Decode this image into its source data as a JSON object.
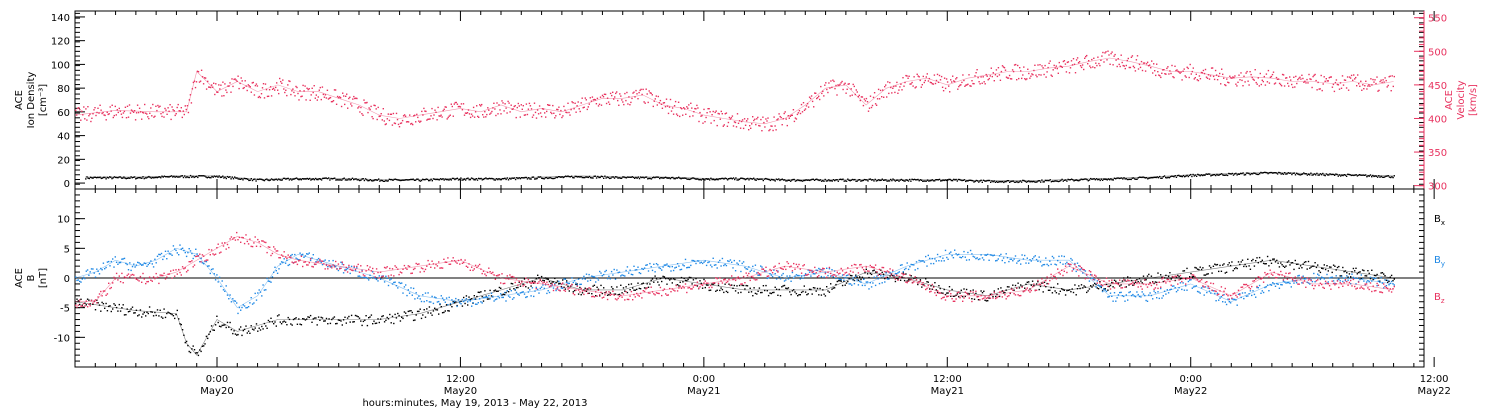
{
  "colors": {
    "density": "#000000",
    "velocity": "#e8325f",
    "bx": "#000000",
    "by": "#1e88e5",
    "bz": "#e8325f",
    "axis": "#000000"
  },
  "chart_data": [
    {
      "type": "scatter",
      "title": "",
      "ylabel_lines": [
        "ACE",
        "Ion Density",
        "[cm⁻³]"
      ],
      "y2label_lines": [
        "ACE",
        "Velocity",
        "[km/s]"
      ],
      "xlim_hours": [
        -7,
        59.5
      ],
      "ylim": [
        -5,
        145
      ],
      "y2lim": [
        295,
        560
      ],
      "yticks": [
        0,
        20,
        40,
        60,
        80,
        100,
        120,
        140
      ],
      "y2ticks": [
        300,
        350,
        400,
        450,
        500,
        550
      ],
      "series": [
        {
          "key": "density",
          "axis": "left",
          "x": [
            -6.5,
            -4,
            -2,
            0,
            2,
            4,
            6,
            8,
            10,
            12,
            14,
            16,
            18,
            20,
            22,
            24,
            26,
            28,
            30,
            32,
            34,
            36,
            38,
            40,
            42,
            44,
            46,
            48,
            50,
            52,
            54,
            56,
            58
          ],
          "values": [
            5,
            5,
            6,
            6,
            3,
            4,
            4,
            3,
            3,
            4,
            4,
            5,
            6,
            5,
            5,
            4,
            4,
            3,
            3,
            3,
            3,
            3,
            2,
            2,
            3,
            4,
            5,
            7,
            8,
            9,
            8,
            7,
            6
          ]
        },
        {
          "key": "velocity",
          "axis": "right",
          "x": [
            -7,
            -5,
            -3,
            -1.5,
            -1,
            0,
            1,
            2,
            3,
            4,
            5,
            6,
            7,
            8,
            9,
            10,
            11,
            12,
            13,
            14,
            15,
            16,
            17,
            18,
            19,
            20,
            21,
            22,
            23,
            24,
            25,
            26,
            27,
            28,
            29,
            30,
            31,
            32,
            33,
            34,
            35,
            36,
            37,
            38,
            39,
            40,
            41,
            42,
            43,
            44,
            45,
            46,
            47,
            48,
            49,
            50,
            51,
            52,
            53,
            54,
            55,
            56,
            57,
            58
          ],
          "values": [
            405,
            412,
            410,
            410,
            470,
            440,
            455,
            440,
            450,
            440,
            440,
            430,
            420,
            405,
            400,
            405,
            410,
            415,
            410,
            420,
            410,
            415,
            410,
            420,
            430,
            430,
            435,
            420,
            415,
            405,
            400,
            395,
            392,
            400,
            420,
            445,
            450,
            420,
            445,
            455,
            460,
            450,
            460,
            465,
            470,
            470,
            475,
            478,
            485,
            490,
            485,
            478,
            470,
            470,
            465,
            460,
            462,
            460,
            455,
            455,
            452,
            455,
            450,
            455
          ]
        }
      ]
    },
    {
      "type": "scatter",
      "title": "",
      "ylabel_lines": [
        "ACE",
        "B",
        "[nT]"
      ],
      "xlim_hours": [
        -7,
        59.5
      ],
      "ylim": [
        -15,
        15
      ],
      "yticks": [
        -10,
        -5,
        0,
        5,
        10
      ],
      "zero_line": true,
      "legend": [
        {
          "key": "bx",
          "label": "B",
          "sub": "x"
        },
        {
          "key": "by",
          "label": "B",
          "sub": "y"
        },
        {
          "key": "bz",
          "label": "B",
          "sub": "z"
        }
      ],
      "legend_position": "right",
      "series": [
        {
          "key": "bx",
          "x": [
            -7,
            -5,
            -4,
            -2,
            -1.5,
            -1,
            0,
            1,
            2,
            3,
            4,
            6,
            8,
            10,
            12,
            14,
            16,
            18,
            20,
            22,
            24,
            26,
            28,
            30,
            32,
            34,
            36,
            38,
            40,
            42,
            44,
            46,
            48,
            50,
            52,
            54,
            56,
            58
          ],
          "values": [
            -4,
            -5,
            -5.5,
            -6,
            -11,
            -13,
            -7,
            -9,
            -8,
            -7,
            -7,
            -7,
            -7,
            -6,
            -4,
            -2,
            0,
            -2,
            -2,
            0,
            -1,
            -2,
            -2,
            -2,
            1,
            0,
            -2,
            -3,
            -1,
            -2,
            -1,
            0,
            1,
            2,
            3,
            2,
            1,
            0
          ]
        },
        {
          "key": "by",
          "x": [
            -7,
            -6,
            -5,
            -4,
            -3,
            -2,
            -1,
            0,
            1,
            2,
            3,
            4,
            6,
            8,
            10,
            12,
            14,
            16,
            18,
            20,
            22,
            24,
            26,
            28,
            30,
            32,
            34,
            36,
            38,
            40,
            42,
            44,
            46,
            48,
            50,
            52,
            54,
            56,
            58
          ],
          "values": [
            0,
            1,
            3,
            2,
            3,
            5,
            4,
            0,
            -5,
            -3,
            2,
            4,
            2,
            0,
            -3,
            -4,
            -3,
            -2,
            0,
            1,
            2,
            3,
            2,
            0,
            1,
            -1,
            2,
            4,
            4,
            3,
            3,
            -3,
            -3,
            -1,
            -4,
            -1,
            0,
            0,
            -1
          ]
        },
        {
          "key": "bz",
          "x": [
            -7,
            -6,
            -5,
            -4,
            -3,
            -2,
            -1,
            0,
            1,
            2,
            3,
            4,
            6,
            8,
            10,
            12,
            14,
            16,
            18,
            20,
            22,
            24,
            26,
            28,
            30,
            32,
            34,
            36,
            38,
            40,
            42,
            44,
            46,
            48,
            50,
            52,
            54,
            56,
            58
          ],
          "values": [
            -4,
            -4,
            0,
            0,
            0,
            1,
            3,
            5,
            7,
            6,
            4,
            3,
            2,
            1,
            2,
            3,
            0,
            -1,
            -2,
            -3,
            -2,
            -1,
            0,
            2,
            1,
            2,
            0,
            -3,
            -3,
            -2,
            2,
            -1,
            -1,
            0,
            -3,
            1,
            -1,
            -1,
            -2
          ]
        }
      ]
    }
  ],
  "xaxis": {
    "ticks": [
      {
        "hour": 0,
        "time": "0:00",
        "day": "May20"
      },
      {
        "hour": 12,
        "time": "12:00",
        "day": "May20"
      },
      {
        "hour": 24,
        "time": "0:00",
        "day": "May21"
      },
      {
        "hour": 36,
        "time": "12:00",
        "day": "May21"
      },
      {
        "hour": 48,
        "time": "0:00",
        "day": "May22"
      },
      {
        "hour": 60,
        "time": "12:00",
        "day": "May22"
      }
    ],
    "caption": "hours:minutes, May 19, 2013 - May 22, 2013"
  }
}
